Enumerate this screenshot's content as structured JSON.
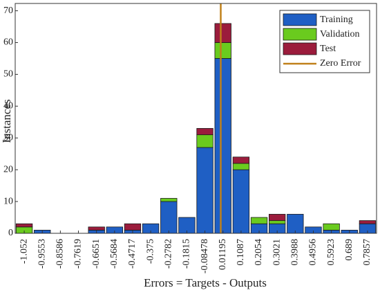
{
  "chart_data": {
    "type": "histogram",
    "xlabel": "Errors = Targets - Outputs",
    "ylabel": "Instances",
    "x": [
      -1.052,
      -0.9553,
      -0.8586,
      -0.7619,
      -0.6651,
      -0.5684,
      -0.4717,
      -0.375,
      -0.2782,
      -0.1815,
      -0.08478,
      0.01195,
      0.1087,
      0.2054,
      0.3021,
      0.3988,
      0.4956,
      0.5923,
      0.689,
      0.7857
    ],
    "series": [
      {
        "name": "Training",
        "color": "#1f5fc4",
        "values": [
          0,
          1,
          0,
          0,
          1,
          2,
          1,
          3,
          10,
          5,
          27,
          55,
          20,
          3,
          3,
          6,
          2,
          1,
          1,
          3
        ]
      },
      {
        "name": "Validation",
        "color": "#6acb1e",
        "values": [
          2,
          0,
          0,
          0,
          0,
          0,
          0,
          0,
          1,
          0,
          4,
          5,
          2,
          2,
          1,
          0,
          0,
          2,
          0,
          0
        ]
      },
      {
        "name": "Test",
        "color": "#9b1c3c",
        "values": [
          1,
          0,
          0,
          0,
          1,
          0,
          2,
          0,
          0,
          0,
          2,
          6,
          2,
          0,
          2,
          0,
          0,
          0,
          0,
          1
        ]
      }
    ],
    "reference_line": {
      "name": "Zero Error",
      "color": "#c0801a",
      "x": 0
    },
    "xlim": [
      -1.1004,
      0.8341
    ],
    "ylim": [
      0,
      72.3
    ],
    "yticks": [
      0,
      10,
      20,
      30,
      40,
      50,
      60,
      70
    ],
    "legend": "top-right"
  }
}
